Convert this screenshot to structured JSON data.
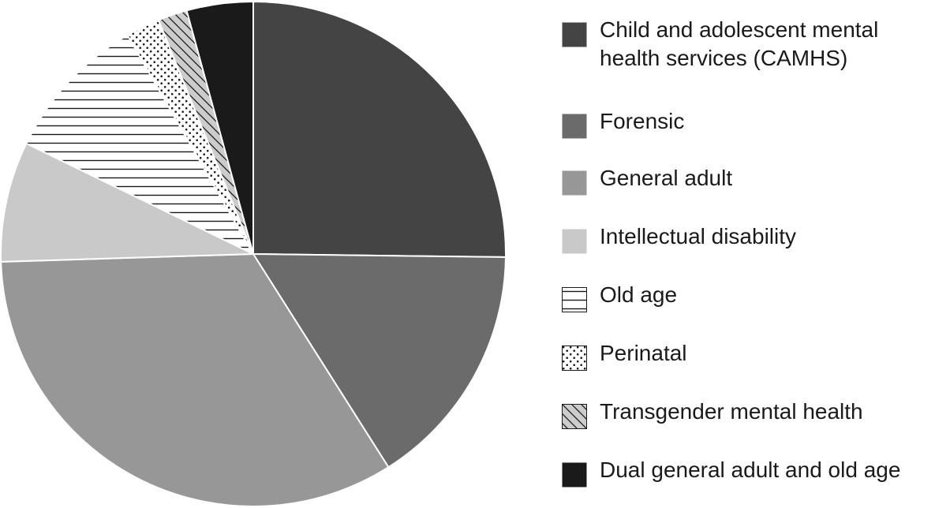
{
  "chart_data": {
    "type": "pie",
    "title": "",
    "slices": [
      {
        "label": "Child and adolescent mental health services (CAMHS)",
        "value": 25.5,
        "color": "#444444",
        "pattern": "solid"
      },
      {
        "label": "Forensic",
        "value": 16.0,
        "color": "#6b6b6b",
        "pattern": "solid"
      },
      {
        "label": "General adult",
        "value": 33.9,
        "color": "#979797",
        "pattern": "solid"
      },
      {
        "label": "Intellectual disability",
        "value": 7.8,
        "color": "#c9c9c9",
        "pattern": "solid"
      },
      {
        "label": "Old age",
        "value": 9.6,
        "color": "#ffffff",
        "pattern": "horizontal-lines"
      },
      {
        "label": "Perinatal",
        "value": 2.2,
        "color": "#ffffff",
        "pattern": "dots"
      },
      {
        "label": "Transgender mental health",
        "value": 1.9,
        "color": "#cccccc",
        "pattern": "diagonal-lines"
      },
      {
        "label": "Dual general adult and old age",
        "value": 4.3,
        "color": "#1a1a1a",
        "pattern": "solid"
      }
    ],
    "legend_position": "right",
    "start_angle_deg": 0,
    "direction": "clockwise"
  }
}
